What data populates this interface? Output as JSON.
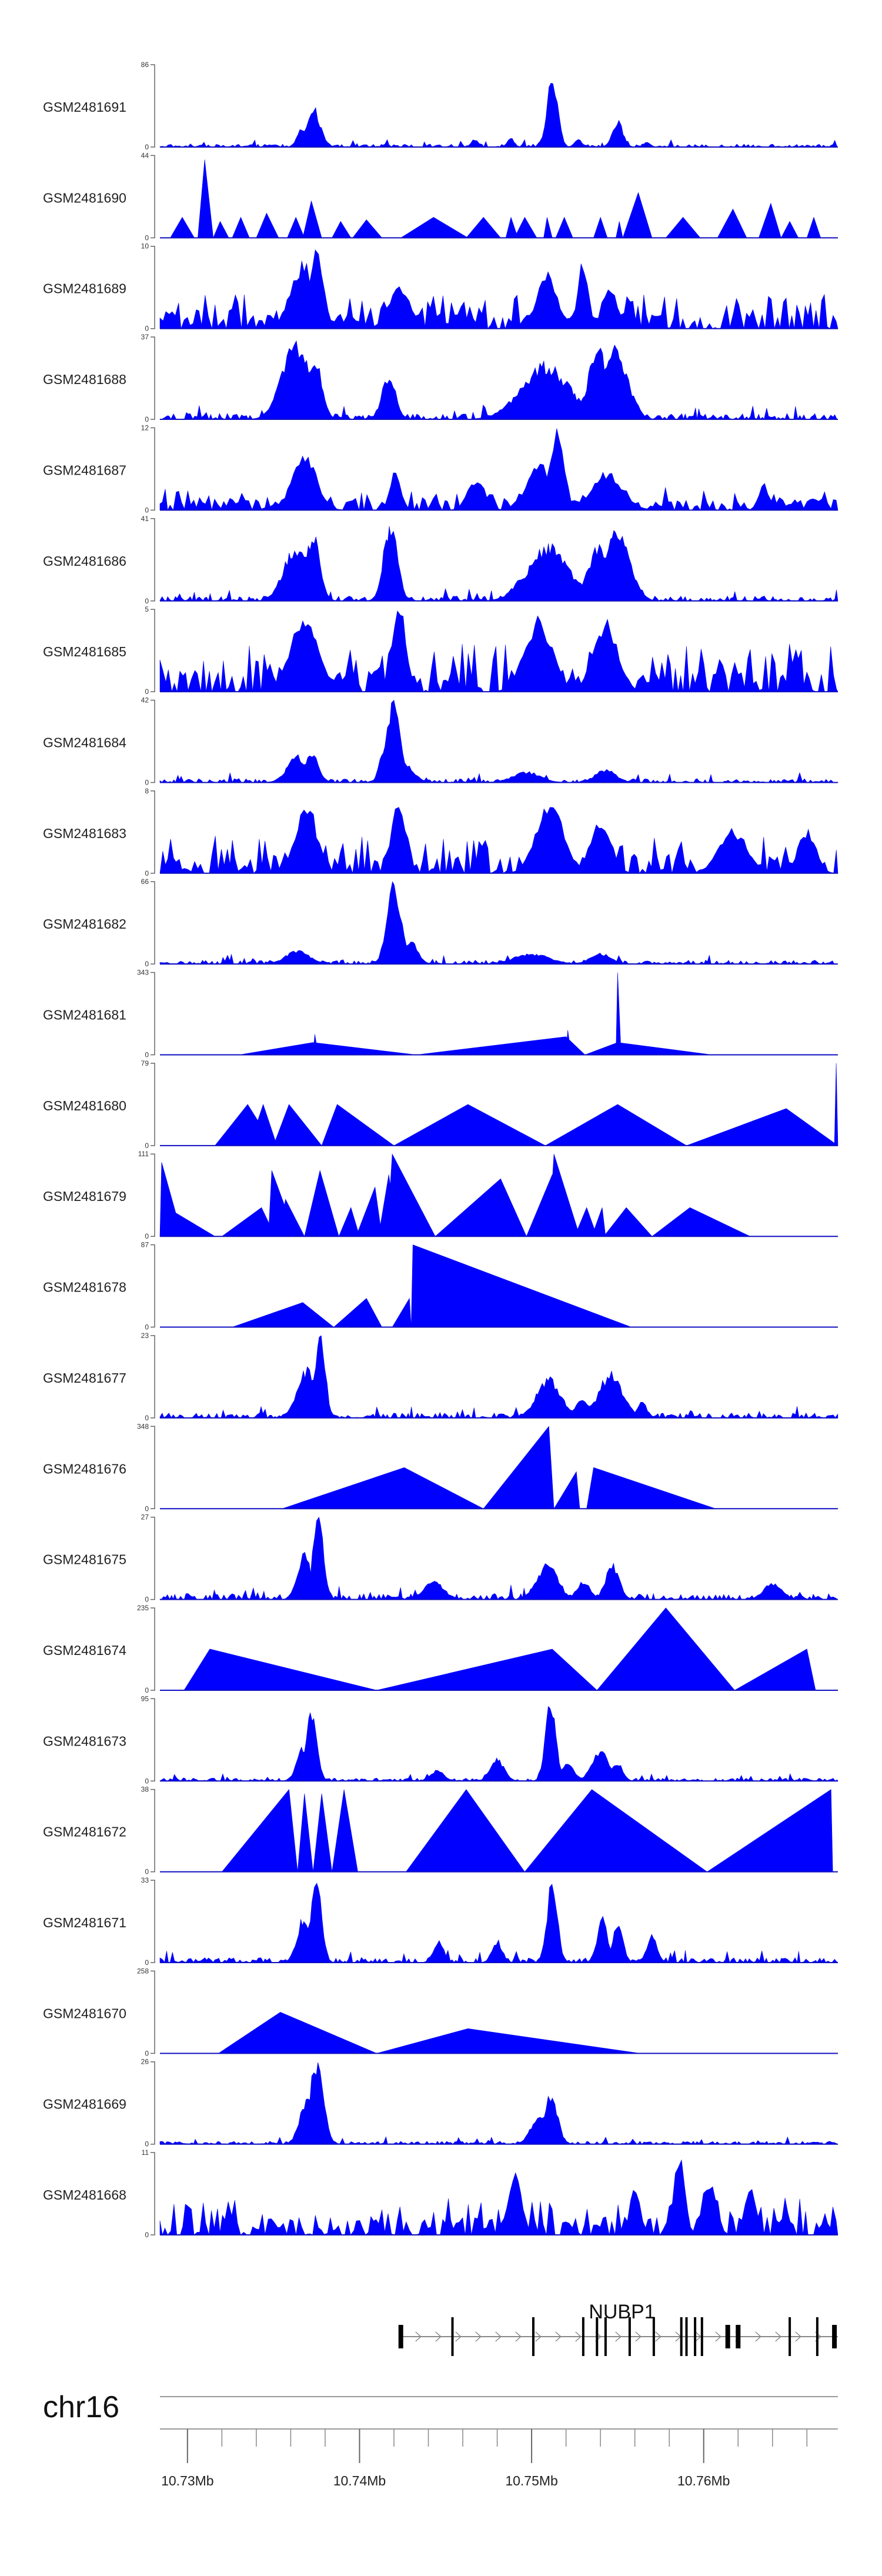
{
  "chart_data": {
    "type": "area",
    "title": "",
    "chromosome": "chr16",
    "x_unit": "Mb",
    "xlim": [
      10.7284,
      10.7678
    ],
    "color": "#0000ff",
    "tracks": [
      {
        "name": "GSM2481691",
        "ymax": "86",
        "pattern": "dense",
        "baseline": 0.03,
        "peaks": [
          [
            10.7367,
            0.22,
            0.0003
          ],
          [
            10.7373,
            0.45,
            0.0004
          ],
          [
            10.7467,
            0.09,
            0.0002
          ],
          [
            10.7488,
            0.1,
            0.0002
          ],
          [
            10.7512,
            0.85,
            0.0003
          ],
          [
            10.7527,
            0.1,
            0.0002
          ],
          [
            10.755,
            0.3,
            0.0003
          ],
          [
            10.7567,
            0.06,
            0.0002
          ]
        ]
      },
      {
        "name": "GSM2481690",
        "ymax": "44",
        "pattern": "sparse",
        "tri": [
          [
            10.729,
            10.7297,
            10.7304,
            0.25
          ],
          [
            10.7306,
            10.731,
            10.7315,
            0.95
          ],
          [
            10.7315,
            10.7319,
            10.7324,
            0.2
          ],
          [
            10.7326,
            10.7331,
            10.7336,
            0.25
          ],
          [
            10.734,
            10.7346,
            10.7353,
            0.3
          ],
          [
            10.7358,
            10.7363,
            10.7368,
            0.25
          ],
          [
            10.7367,
            10.7372,
            10.7378,
            0.45
          ],
          [
            10.7384,
            10.7389,
            10.7395,
            0.2
          ],
          [
            10.7396,
            10.7404,
            10.7413,
            0.22
          ],
          [
            10.7424,
            10.7443,
            10.7463,
            0.25
          ],
          [
            10.7462,
            10.7472,
            10.7482,
            0.25
          ],
          [
            10.7485,
            10.7488,
            10.7492,
            0.25
          ],
          [
            10.749,
            10.7496,
            10.7503,
            0.25
          ],
          [
            10.7507,
            10.7509,
            10.7512,
            0.25
          ],
          [
            10.7514,
            10.7519,
            10.7524,
            0.25
          ],
          [
            10.7536,
            10.754,
            10.7544,
            0.25
          ],
          [
            10.7549,
            10.7551,
            10.7553,
            0.2
          ],
          [
            10.7553,
            10.7562,
            10.757,
            0.55
          ],
          [
            10.7578,
            10.7588,
            10.7598,
            0.25
          ],
          [
            10.7608,
            10.7617,
            10.7625,
            0.35
          ],
          [
            10.7632,
            10.7639,
            10.7645,
            0.42
          ],
          [
            10.7645,
            10.765,
            10.7655,
            0.2
          ],
          [
            10.766,
            10.7664,
            10.7668,
            0.25
          ]
        ]
      },
      {
        "name": "GSM2481689",
        "ymax": "10",
        "pattern": "noisy",
        "amp": 0.32,
        "peaks": [
          [
            10.7367,
            0.75,
            0.0007
          ],
          [
            10.7375,
            1.0,
            0.0004
          ],
          [
            10.7423,
            0.5,
            0.0006
          ],
          [
            10.7509,
            0.62,
            0.0006
          ],
          [
            10.753,
            0.75,
            0.0003
          ],
          [
            10.7545,
            0.5,
            0.0004
          ]
        ]
      },
      {
        "name": "GSM2481688",
        "ymax": "37",
        "pattern": "dense",
        "baseline": 0.06,
        "peaks": [
          [
            10.7363,
            0.88,
            0.0008
          ],
          [
            10.7374,
            0.75,
            0.0004
          ],
          [
            10.7417,
            0.5,
            0.0004
          ],
          [
            10.7508,
            0.62,
            0.0014
          ],
          [
            10.7528,
            0.18,
            0.0002
          ],
          [
            10.7539,
            0.8,
            0.0006
          ],
          [
            10.7549,
            0.8,
            0.0007
          ],
          [
            10.7562,
            0.1,
            0.0003
          ]
        ]
      },
      {
        "name": "GSM2481687",
        "ymax": "12",
        "pattern": "noisy",
        "amp": 0.22,
        "peaks": [
          [
            10.7368,
            0.62,
            0.0007
          ],
          [
            10.7421,
            0.48,
            0.0003
          ],
          [
            10.7468,
            0.36,
            0.0005
          ],
          [
            10.7505,
            0.5,
            0.0008
          ],
          [
            10.7515,
            0.88,
            0.0004
          ],
          [
            10.7544,
            0.42,
            0.0009
          ],
          [
            10.7635,
            0.3,
            0.0003
          ]
        ]
      },
      {
        "name": "GSM2481686",
        "ymax": "41",
        "pattern": "dense",
        "baseline": 0.05,
        "peaks": [
          [
            10.7363,
            0.62,
            0.0007
          ],
          [
            10.7373,
            0.75,
            0.0004
          ],
          [
            10.7418,
            0.88,
            0.0004
          ],
          [
            10.7497,
            0.3,
            0.0007
          ],
          [
            10.751,
            0.62,
            0.0012
          ],
          [
            10.7539,
            0.65,
            0.0006
          ],
          [
            10.755,
            0.8,
            0.0007
          ]
        ]
      },
      {
        "name": "GSM2481685",
        "ymax": "5",
        "pattern": "noisy",
        "amp": 0.45,
        "peaks": [
          [
            10.7368,
            0.82,
            0.0008
          ],
          [
            10.7423,
            0.95,
            0.0004
          ],
          [
            10.7504,
            0.82,
            0.0008
          ],
          [
            10.7543,
            0.82,
            0.0007
          ]
        ]
      },
      {
        "name": "GSM2481684",
        "ymax": "42",
        "pattern": "dense",
        "baseline": 0.04,
        "peaks": [
          [
            10.7364,
            0.3,
            0.0006
          ],
          [
            10.7372,
            0.35,
            0.0004
          ],
          [
            10.7415,
            0.45,
            0.0003
          ],
          [
            10.742,
            0.95,
            0.0004
          ],
          [
            10.7427,
            0.2,
            0.0005
          ],
          [
            10.7497,
            0.12,
            0.0008
          ],
          [
            10.7543,
            0.15,
            0.0006
          ]
        ]
      },
      {
        "name": "GSM2481683",
        "ymax": "8",
        "pattern": "noisy",
        "amp": 0.35,
        "peaks": [
          [
            10.7369,
            0.8,
            0.0006
          ],
          [
            10.7423,
            0.88,
            0.0004
          ],
          [
            10.7511,
            0.78,
            0.0008
          ],
          [
            10.754,
            0.6,
            0.0006
          ],
          [
            10.7617,
            0.5,
            0.0008
          ],
          [
            10.766,
            0.5,
            0.0005
          ]
        ]
      },
      {
        "name": "GSM2481682",
        "ymax": "66",
        "pattern": "dense",
        "baseline": 0.04,
        "peaks": [
          [
            10.7364,
            0.15,
            0.0007
          ],
          [
            10.742,
            0.92,
            0.0004
          ],
          [
            10.743,
            0.25,
            0.0004
          ],
          [
            10.75,
            0.12,
            0.001
          ],
          [
            10.754,
            0.12,
            0.0006
          ]
        ]
      },
      {
        "name": "GSM2481681",
        "ymax": "343",
        "pattern": "sparse",
        "tri": [
          [
            10.733,
            10.7373,
            10.7433,
            0.15
          ],
          [
            10.7373,
            10.7374,
            10.7376,
            0.25
          ],
          [
            10.7433,
            10.752,
            10.7531,
            0.22
          ],
          [
            10.752,
            10.7521,
            10.7523,
            0.3
          ],
          [
            10.7531,
            10.755,
            10.7605,
            0.15
          ],
          [
            10.7549,
            10.755,
            10.7552,
            1.0
          ]
        ]
      },
      {
        "name": "GSM2481680",
        "ymax": "79",
        "pattern": "sparse",
        "tri": [
          [
            10.7316,
            10.7335,
            10.735,
            0.5
          ],
          [
            10.7336,
            10.7344,
            10.7352,
            0.5
          ],
          [
            10.735,
            10.7359,
            10.7378,
            0.5
          ],
          [
            10.7378,
            10.7387,
            10.742,
            0.5
          ],
          [
            10.742,
            10.7463,
            10.7508,
            0.5
          ],
          [
            10.7508,
            10.755,
            10.759,
            0.5
          ],
          [
            10.759,
            10.7648,
            10.7678,
            0.45
          ],
          [
            10.7676,
            10.7677,
            10.7678,
            1.0
          ]
        ]
      },
      {
        "name": "GSM2481679",
        "ymax": "111",
        "pattern": "sparse",
        "tri": [
          [
            10.7284,
            10.7285,
            10.7297,
            0.9
          ],
          [
            10.7286,
            10.7292,
            10.7316,
            0.3
          ],
          [
            10.732,
            10.7343,
            10.7351,
            0.35
          ],
          [
            10.7347,
            10.7349,
            10.7363,
            0.8
          ],
          [
            10.7353,
            10.7357,
            10.7368,
            0.45
          ],
          [
            10.7368,
            10.7377,
            10.7388,
            0.8
          ],
          [
            10.7388,
            10.7395,
            10.74,
            0.35
          ],
          [
            10.7398,
            10.7409,
            10.7413,
            0.6
          ],
          [
            10.7411,
            10.7417,
            10.7422,
            0.75
          ],
          [
            10.7416,
            10.7419,
            10.7444,
            1.0
          ],
          [
            10.7444,
            10.7482,
            10.7497,
            0.7
          ],
          [
            10.7497,
            10.7512,
            10.752,
            0.75
          ],
          [
            10.751,
            10.7513,
            10.7528,
            1.0
          ],
          [
            10.7525,
            10.7532,
            10.7538,
            0.35
          ],
          [
            10.7535,
            10.7541,
            10.7543,
            0.35
          ],
          [
            10.7542,
            10.7555,
            10.757,
            0.35
          ],
          [
            10.757,
            10.7592,
            10.7627,
            0.35
          ]
        ]
      },
      {
        "name": "GSM2481678",
        "ymax": "87",
        "pattern": "sparse",
        "tri": [
          [
            10.7326,
            10.7367,
            10.7385,
            0.3
          ],
          [
            10.7385,
            10.7404,
            10.7413,
            0.35
          ],
          [
            10.7419,
            10.7429,
            10.743,
            0.35
          ],
          [
            10.743,
            10.7431,
            10.7558,
            1.0
          ]
        ]
      },
      {
        "name": "GSM2481677",
        "ymax": "23",
        "pattern": "dense",
        "baseline": 0.05,
        "peaks": [
          [
            10.737,
            0.55,
            0.0006
          ],
          [
            10.7377,
            0.98,
            0.0003
          ],
          [
            10.751,
            0.45,
            0.0007
          ],
          [
            10.753,
            0.2,
            0.0005
          ],
          [
            10.7546,
            0.5,
            0.0007
          ],
          [
            10.7564,
            0.18,
            0.0003
          ]
        ]
      },
      {
        "name": "GSM2481676",
        "ymax": "348",
        "pattern": "sparse",
        "tri": [
          [
            10.7355,
            10.7426,
            10.7472,
            0.5
          ],
          [
            10.7472,
            10.751,
            10.7513,
            1.0
          ],
          [
            10.7513,
            10.7526,
            10.7528,
            0.45
          ],
          [
            10.7532,
            10.7536,
            10.7607,
            0.5
          ]
        ]
      },
      {
        "name": "GSM2481675",
        "ymax": "27",
        "pattern": "dense",
        "baseline": 0.06,
        "peaks": [
          [
            10.7368,
            0.5,
            0.0004
          ],
          [
            10.7376,
            0.95,
            0.0003
          ],
          [
            10.7443,
            0.2,
            0.0006
          ],
          [
            10.7509,
            0.4,
            0.0006
          ],
          [
            10.753,
            0.2,
            0.0004
          ],
          [
            10.7547,
            0.4,
            0.0004
          ],
          [
            10.764,
            0.2,
            0.0005
          ]
        ]
      },
      {
        "name": "GSM2481674",
        "ymax": "235",
        "pattern": "sparse",
        "tri": [
          [
            10.7298,
            10.7313,
            10.741,
            0.5
          ],
          [
            10.741,
            10.7512,
            10.7538,
            0.5
          ],
          [
            10.7538,
            10.7578,
            10.7618,
            1.0
          ],
          [
            10.7618,
            10.766,
            10.7665,
            0.5
          ]
        ]
      },
      {
        "name": "GSM2481673",
        "ymax": "95",
        "pattern": "dense",
        "baseline": 0.03,
        "peaks": [
          [
            10.7368,
            0.4,
            0.0004
          ],
          [
            10.7372,
            0.8,
            0.0003
          ],
          [
            10.7445,
            0.12,
            0.0004
          ],
          [
            10.748,
            0.25,
            0.0004
          ],
          [
            10.7511,
            0.95,
            0.0003
          ],
          [
            10.7521,
            0.2,
            0.0004
          ],
          [
            10.754,
            0.35,
            0.0005
          ],
          [
            10.755,
            0.22,
            0.0003
          ]
        ]
      },
      {
        "name": "GSM2481672",
        "ymax": "38",
        "pattern": "sparse",
        "tri": [
          [
            10.732,
            10.7359,
            10.7364,
            1.0
          ],
          [
            10.7364,
            10.7368,
            10.7373,
            0.95
          ],
          [
            10.7373,
            10.7378,
            10.7384,
            0.95
          ],
          [
            10.7384,
            10.7391,
            10.7399,
            1.0
          ],
          [
            10.7427,
            10.7462,
            10.7496,
            1.0
          ],
          [
            10.7496,
            10.7535,
            10.7602,
            1.0
          ],
          [
            10.7602,
            10.7674,
            10.7675,
            1.0
          ]
        ]
      },
      {
        "name": "GSM2481671",
        "ymax": "33",
        "pattern": "dense",
        "baseline": 0.05,
        "peaks": [
          [
            10.7368,
            0.55,
            0.0004
          ],
          [
            10.7375,
            0.98,
            0.0003
          ],
          [
            10.7446,
            0.25,
            0.0003
          ],
          [
            10.748,
            0.25,
            0.0003
          ],
          [
            10.7512,
            0.95,
            0.0003
          ],
          [
            10.7541,
            0.5,
            0.0003
          ],
          [
            10.755,
            0.45,
            0.0003
          ],
          [
            10.757,
            0.3,
            0.0003
          ]
        ]
      },
      {
        "name": "GSM2481670",
        "ymax": "258",
        "pattern": "sparse",
        "tri": [
          [
            10.7318,
            10.7354,
            10.741,
            0.5
          ],
          [
            10.741,
            10.7463,
            10.7563,
            0.3
          ]
        ]
      },
      {
        "name": "GSM2481669",
        "ymax": "26",
        "pattern": "dense",
        "baseline": 0.03,
        "peaks": [
          [
            10.7369,
            0.5,
            0.0004
          ],
          [
            10.7375,
            0.95,
            0.0004
          ],
          [
            10.7505,
            0.35,
            0.0005
          ],
          [
            10.7511,
            0.55,
            0.0004
          ]
        ]
      },
      {
        "name": "GSM2481668",
        "ymax": "11",
        "pattern": "noisy",
        "amp": 0.35,
        "peaks": [
          [
            10.749,
            0.7,
            0.0004
          ],
          [
            10.756,
            0.55,
            0.0003
          ],
          [
            10.7586,
            0.92,
            0.0003
          ],
          [
            10.7603,
            0.6,
            0.0004
          ],
          [
            10.7627,
            0.6,
            0.0003
          ]
        ]
      }
    ],
    "gene": {
      "name": "NUBP1",
      "start": 10.7423,
      "end": 10.7678,
      "exons": [
        10.7424,
        10.7454,
        10.7501,
        10.753,
        10.7538,
        10.7543,
        10.7557,
        10.7571,
        10.7587,
        10.759,
        10.7595,
        10.7599,
        10.7614,
        10.762,
        10.765,
        10.7666,
        10.7676
      ]
    },
    "axis": {
      "major_ticks": [
        10.73,
        10.74,
        10.75,
        10.76
      ],
      "major_labels": [
        "10.73Mb",
        "10.74Mb",
        "10.75Mb",
        "10.76Mb"
      ],
      "minor_step": 0.002,
      "minor_start": 10.728,
      "minor_end": 10.766
    }
  }
}
